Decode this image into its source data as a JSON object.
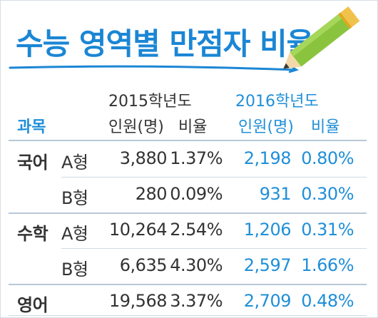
{
  "title": "수능 영역별 만점자 비율",
  "header": {
    "subject": "과목",
    "year_2015": "2015학년도",
    "year_2016": "2016학년도",
    "count_label_2015": "인원(명)",
    "ratio_label_2015": "비율",
    "count_label_2016": "인원(명)",
    "ratio_label_2016": "비율"
  },
  "rows": [
    {
      "subject": "국어",
      "type": "A형",
      "count_2015": "3,880",
      "ratio_2015": "1.37%",
      "count_2016": "2,198",
      "ratio_2016": "0.80%"
    },
    {
      "subject": "",
      "type": "B형",
      "count_2015": "280",
      "ratio_2015": "0.09%",
      "count_2016": "931",
      "ratio_2016": "0.30%"
    },
    {
      "subject": "수학",
      "type": "A형",
      "count_2015": "10,264",
      "ratio_2015": "2.54%",
      "count_2016": "1,206",
      "ratio_2016": "0.31%"
    },
    {
      "subject": "",
      "type": "B형",
      "count_2015": "6,635",
      "ratio_2015": "4.30%",
      "count_2016": "2,597",
      "ratio_2016": "1.66%"
    },
    {
      "subject": "영어",
      "type": "",
      "count_2015": "19,568",
      "ratio_2015": "3.37%",
      "count_2016": "2,709",
      "ratio_2016": "0.48%"
    }
  ],
  "colors": {
    "accent": "#1f8fd8",
    "title": "#1b86d4",
    "pencil": "#8ac43f"
  }
}
